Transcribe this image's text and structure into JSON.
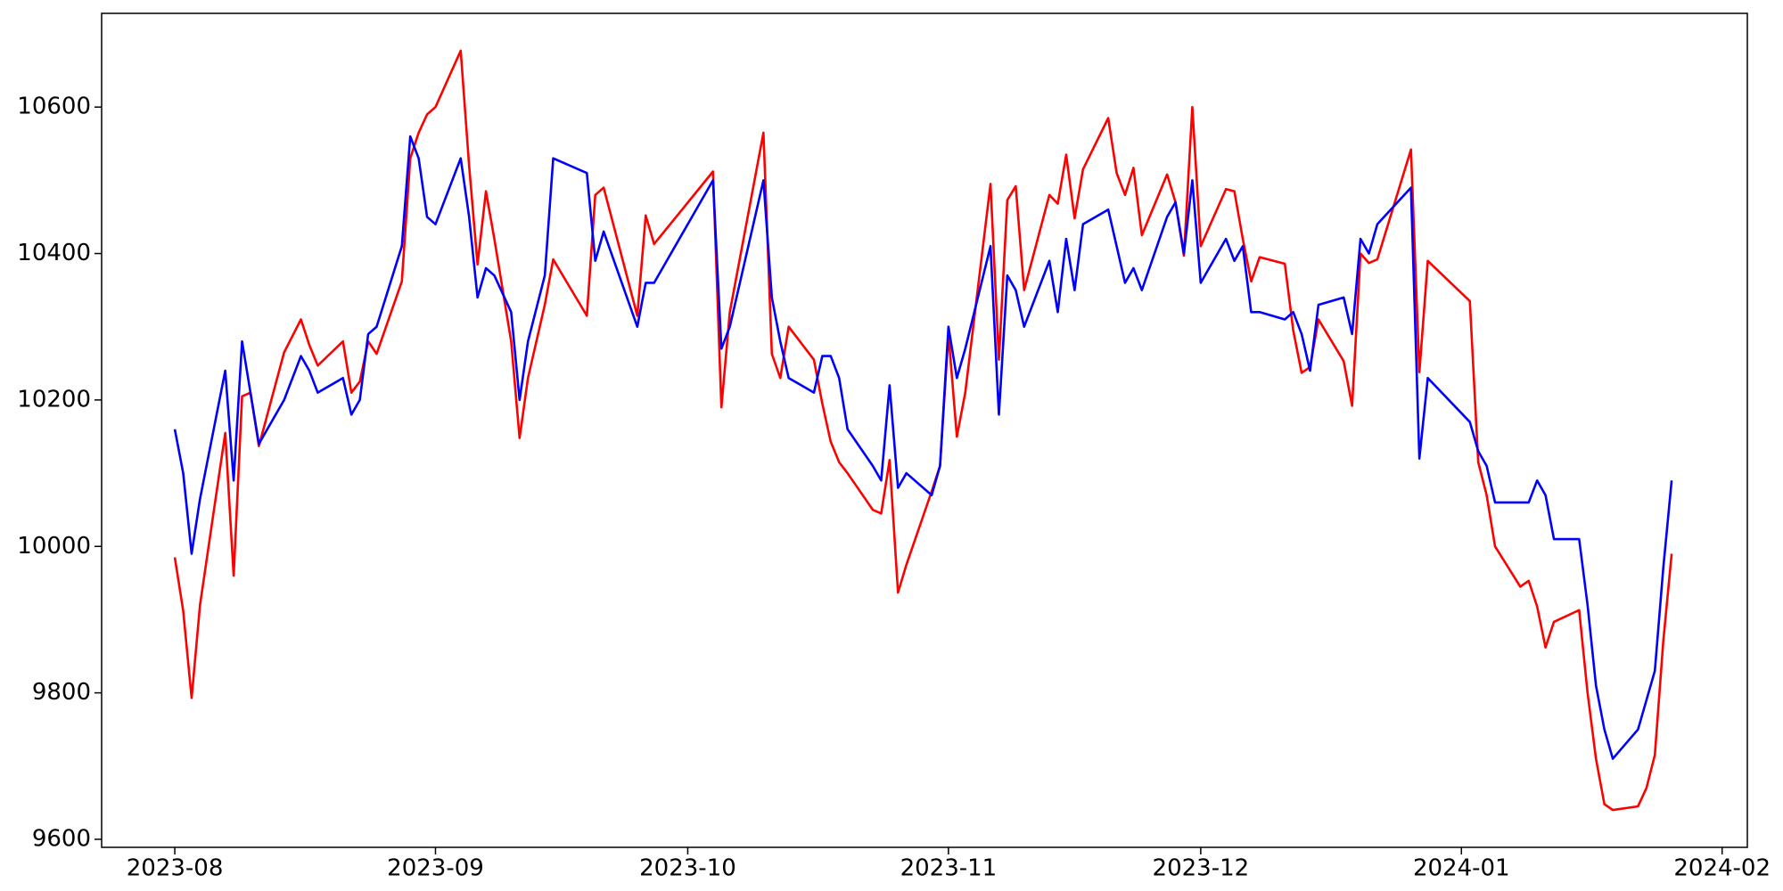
{
  "chart_data": {
    "type": "line",
    "x": [
      0,
      1,
      2,
      3,
      6,
      7,
      8,
      9,
      10,
      13,
      15,
      16,
      17,
      20,
      21,
      22,
      23,
      24,
      27,
      28,
      29,
      30,
      31,
      34,
      35,
      36,
      37,
      38,
      40,
      41,
      42,
      44,
      45,
      49,
      50,
      51,
      55,
      56,
      57,
      64,
      65,
      66,
      70,
      71,
      72,
      73,
      76,
      77,
      78,
      79,
      80,
      83,
      84,
      85,
      86,
      87,
      90,
      91,
      92,
      93,
      94,
      97,
      98,
      99,
      100,
      101,
      104,
      105,
      106,
      107,
      108,
      111,
      112,
      113,
      114,
      115,
      118,
      119,
      120,
      121,
      122,
      125,
      126,
      127,
      128,
      129,
      132,
      133,
      134,
      135,
      136,
      139,
      140,
      141,
      142,
      143,
      147,
      148,
      149,
      154,
      155,
      156,
      157,
      160,
      161,
      162,
      163,
      164,
      167,
      168,
      169,
      170,
      171,
      174,
      175,
      176,
      177,
      178
    ],
    "series": [
      {
        "color": "#ff0000",
        "values": [
          9985,
          9912,
          9793,
          9920,
          10155,
          9960,
          10205,
          10210,
          10137,
          10265,
          10310,
          10275,
          10247,
          10280,
          10210,
          10225,
          10280,
          10263,
          10362,
          10530,
          10565,
          10590,
          10600,
          10677,
          10520,
          10385,
          10485,
          10420,
          10280,
          10148,
          10230,
          10330,
          10392,
          10315,
          10480,
          10490,
          10315,
          10452,
          10413,
          10512,
          10190,
          10320,
          10565,
          10263,
          10230,
          10300,
          10255,
          10195,
          10143,
          10115,
          10100,
          10050,
          10045,
          10118,
          9937,
          9975,
          10075,
          10110,
          10290,
          10150,
          10210,
          10495,
          10255,
          10473,
          10492,
          10350,
          10480,
          10468,
          10535,
          10448,
          10515,
          10585,
          10510,
          10480,
          10517,
          10425,
          10508,
          10470,
          10397,
          10600,
          10410,
          10488,
          10485,
          10420,
          10362,
          10395,
          10386,
          10295,
          10237,
          10245,
          10310,
          10253,
          10192,
          10400,
          10387,
          10392,
          10542,
          10238,
          10390,
          10335,
          10115,
          10070,
          10000,
          9945,
          9953,
          9918,
          9862,
          9897,
          9913,
          9800,
          9710,
          9648,
          9640,
          9645,
          9670,
          9715,
          9870,
          9990
        ]
      },
      {
        "color": "#0000ff",
        "values": [
          10160,
          10100,
          9990,
          10065,
          10240,
          10090,
          10280,
          10210,
          10140,
          10200,
          10260,
          10240,
          10210,
          10230,
          10180,
          10200,
          10290,
          10300,
          10410,
          10560,
          10530,
          10450,
          10440,
          10530,
          10450,
          10340,
          10380,
          10370,
          10320,
          10200,
          10280,
          10370,
          10530,
          10510,
          10390,
          10430,
          10300,
          10360,
          10360,
          10500,
          10270,
          10300,
          10500,
          10340,
          10280,
          10230,
          10210,
          10260,
          10260,
          10230,
          10160,
          10110,
          10090,
          10220,
          10080,
          10100,
          10070,
          10110,
          10300,
          10230,
          10270,
          10410,
          10180,
          10370,
          10350,
          10300,
          10390,
          10320,
          10420,
          10350,
          10440,
          10460,
          10410,
          10360,
          10380,
          10350,
          10450,
          10470,
          10400,
          10500,
          10360,
          10420,
          10390,
          10410,
          10320,
          10320,
          10310,
          10320,
          10290,
          10240,
          10330,
          10340,
          10290,
          10420,
          10400,
          10440,
          10490,
          10120,
          10230,
          10170,
          10130,
          10110,
          10060,
          10060,
          10060,
          10090,
          10070,
          10010,
          10010,
          9920,
          9810,
          9750,
          9710,
          9750,
          9790,
          9830,
          9970,
          10090
        ]
      }
    ],
    "xlim": [
      -8.7,
      187
    ],
    "xticks": [
      {
        "value": 0,
        "label": "2023-08"
      },
      {
        "value": 31,
        "label": "2023-09"
      },
      {
        "value": 61,
        "label": "2023-10"
      },
      {
        "value": 92,
        "label": "2023-11"
      },
      {
        "value": 122,
        "label": "2023-12"
      },
      {
        "value": 153,
        "label": "2024-01"
      },
      {
        "value": 184,
        "label": "2024-02"
      }
    ],
    "ylim": [
      9589,
      10728
    ],
    "yticks": [
      9600,
      9800,
      10000,
      10200,
      10400,
      10600
    ],
    "grid": false
  }
}
